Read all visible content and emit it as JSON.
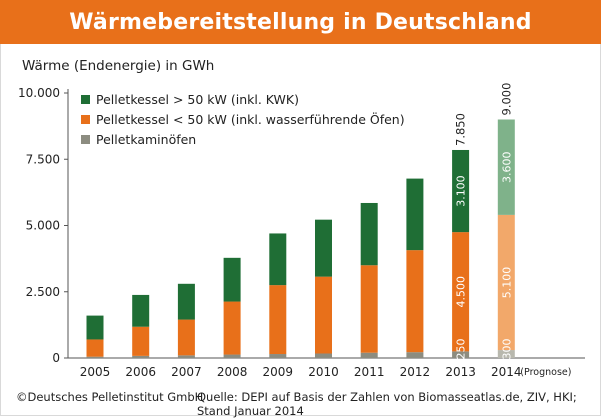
{
  "title": "Wärmebereitstellung in Deutschland",
  "footer": {
    "copyright": "©Deutsches Pelletinstitut GmbH",
    "source": "Quelle: DEPI auf Basis der Zahlen von Biomasseatlas.de, ZIV, HKI; Stand Januar 2014"
  },
  "colors": {
    "title_bg": "#e8701a",
    "large_boilers": "#1f6e35",
    "small_boilers": "#e8701a",
    "stoves": "#8c8c80",
    "large_boilers_forecast": "#7fb28a",
    "small_boilers_forecast": "#f2a86a",
    "stoves_forecast": "#b8b8ae"
  },
  "chart_data": {
    "type": "bar",
    "stacked": true,
    "title": "Wärmebereitstellung in Deutschland",
    "ylabel": "Wärme (Endenergie) in GWh",
    "xlabel": "",
    "ylim": [
      0,
      10000
    ],
    "yticks": [
      "0",
      "2.500",
      "5.000",
      "7.500",
      "10.000"
    ],
    "grid": false,
    "legend_position": "top-left",
    "categories": [
      "2005",
      "2006",
      "2007",
      "2008",
      "2009",
      "2010",
      "2011",
      "2012",
      "2013",
      "2014"
    ],
    "category_notes": {
      "2014": "(Prognose)"
    },
    "forecast_categories": [
      "2014"
    ],
    "series": [
      {
        "name": "Pelletkaminöfen",
        "color_key": "stoves",
        "values": [
          50,
          80,
          100,
          130,
          150,
          170,
          200,
          220,
          250,
          300
        ]
      },
      {
        "name": "Pelletkessel < 50 kW (inkl. wasserführende Öfen)",
        "color_key": "small_boilers",
        "values": [
          650,
          1100,
          1350,
          2000,
          2600,
          2900,
          3300,
          3850,
          4500,
          5100
        ]
      },
      {
        "name": "Pelletkessel > 50 kW (inkl. KWK)",
        "color_key": "large_boilers",
        "values": [
          900,
          1200,
          1350,
          1650,
          1950,
          2150,
          2350,
          2700,
          3100,
          3600
        ]
      }
    ],
    "legend_order": [
      2,
      1,
      0
    ],
    "segment_labels": {
      "2013": {
        "values": [
          "250",
          "4.500",
          "3.100"
        ],
        "total": "7.850"
      },
      "2014": {
        "values": [
          "300",
          "5.100",
          "3.600"
        ],
        "total": "9.000"
      }
    }
  }
}
